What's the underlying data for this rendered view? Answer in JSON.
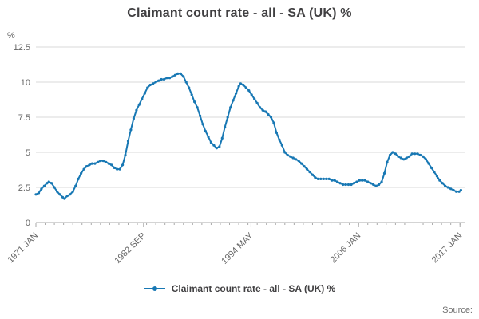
{
  "title": "Claimant count rate - all - SA (UK) %",
  "legend": {
    "label": "Claimant count rate - all - SA (UK) %"
  },
  "source_label": "Source:",
  "colors": {
    "line": "#1878b4",
    "grid": "#d9d9d9",
    "axis": "#a8a8a8",
    "tick_text": "#666666",
    "title_text": "#414042"
  },
  "chart_data": {
    "type": "line",
    "title": "Claimant count rate - all - SA (UK) %",
    "xlabel": "",
    "ylabel": "%",
    "x_range": [
      1971.0,
      2017.5
    ],
    "ylim": [
      0,
      12.5
    ],
    "y_ticks": [
      0,
      2.5,
      5,
      7.5,
      10,
      12.5
    ],
    "x_ticks": [
      {
        "label": "1971 JAN",
        "x": 1971.0
      },
      {
        "label": "1982 SEP",
        "x": 1982.67
      },
      {
        "label": "1994 MAY",
        "x": 1994.33
      },
      {
        "label": "2006 JAN",
        "x": 2006.0
      },
      {
        "label": "2017 JAN",
        "x": 2017.0
      }
    ],
    "grid": true,
    "legend_position": "bottom",
    "series": [
      {
        "name": "Claimant count rate - all - SA (UK) %",
        "points": [
          [
            1971.0,
            2.0
          ],
          [
            1971.3,
            2.1
          ],
          [
            1971.6,
            2.4
          ],
          [
            1971.9,
            2.6
          ],
          [
            1972.2,
            2.8
          ],
          [
            1972.4,
            2.9
          ],
          [
            1972.7,
            2.8
          ],
          [
            1973.0,
            2.5
          ],
          [
            1973.3,
            2.2
          ],
          [
            1973.6,
            2.0
          ],
          [
            1973.9,
            1.8
          ],
          [
            1974.1,
            1.7
          ],
          [
            1974.4,
            1.9
          ],
          [
            1974.7,
            2.0
          ],
          [
            1975.0,
            2.2
          ],
          [
            1975.3,
            2.6
          ],
          [
            1975.6,
            3.1
          ],
          [
            1975.9,
            3.5
          ],
          [
            1976.2,
            3.8
          ],
          [
            1976.5,
            4.0
          ],
          [
            1976.8,
            4.1
          ],
          [
            1977.1,
            4.2
          ],
          [
            1977.4,
            4.2
          ],
          [
            1977.7,
            4.3
          ],
          [
            1978.0,
            4.4
          ],
          [
            1978.3,
            4.4
          ],
          [
            1978.6,
            4.3
          ],
          [
            1978.9,
            4.2
          ],
          [
            1979.2,
            4.1
          ],
          [
            1979.5,
            3.9
          ],
          [
            1979.8,
            3.8
          ],
          [
            1980.1,
            3.8
          ],
          [
            1980.4,
            4.1
          ],
          [
            1980.7,
            4.8
          ],
          [
            1981.0,
            5.8
          ],
          [
            1981.3,
            6.6
          ],
          [
            1981.6,
            7.4
          ],
          [
            1981.9,
            8.0
          ],
          [
            1982.2,
            8.4
          ],
          [
            1982.5,
            8.8
          ],
          [
            1982.8,
            9.2
          ],
          [
            1983.1,
            9.6
          ],
          [
            1983.4,
            9.8
          ],
          [
            1983.7,
            9.9
          ],
          [
            1984.0,
            10.0
          ],
          [
            1984.3,
            10.1
          ],
          [
            1984.6,
            10.2
          ],
          [
            1984.9,
            10.2
          ],
          [
            1985.2,
            10.3
          ],
          [
            1985.5,
            10.3
          ],
          [
            1985.8,
            10.4
          ],
          [
            1986.1,
            10.5
          ],
          [
            1986.4,
            10.6
          ],
          [
            1986.7,
            10.6
          ],
          [
            1987.0,
            10.4
          ],
          [
            1987.3,
            10.0
          ],
          [
            1987.6,
            9.6
          ],
          [
            1987.9,
            9.1
          ],
          [
            1988.2,
            8.6
          ],
          [
            1988.5,
            8.2
          ],
          [
            1988.8,
            7.6
          ],
          [
            1989.1,
            7.0
          ],
          [
            1989.4,
            6.5
          ],
          [
            1989.7,
            6.1
          ],
          [
            1990.0,
            5.7
          ],
          [
            1990.3,
            5.5
          ],
          [
            1990.6,
            5.3
          ],
          [
            1990.9,
            5.4
          ],
          [
            1991.2,
            6.0
          ],
          [
            1991.5,
            6.8
          ],
          [
            1991.8,
            7.5
          ],
          [
            1992.1,
            8.2
          ],
          [
            1992.4,
            8.7
          ],
          [
            1992.7,
            9.2
          ],
          [
            1993.0,
            9.7
          ],
          [
            1993.2,
            9.9
          ],
          [
            1993.5,
            9.8
          ],
          [
            1993.8,
            9.6
          ],
          [
            1994.1,
            9.4
          ],
          [
            1994.4,
            9.1
          ],
          [
            1994.7,
            8.8
          ],
          [
            1995.0,
            8.5
          ],
          [
            1995.3,
            8.2
          ],
          [
            1995.6,
            8.0
          ],
          [
            1995.9,
            7.9
          ],
          [
            1996.2,
            7.7
          ],
          [
            1996.5,
            7.5
          ],
          [
            1996.8,
            7.1
          ],
          [
            1997.1,
            6.4
          ],
          [
            1997.4,
            5.9
          ],
          [
            1997.7,
            5.5
          ],
          [
            1998.0,
            5.0
          ],
          [
            1998.3,
            4.8
          ],
          [
            1998.6,
            4.7
          ],
          [
            1998.9,
            4.6
          ],
          [
            1999.2,
            4.5
          ],
          [
            1999.5,
            4.4
          ],
          [
            1999.8,
            4.2
          ],
          [
            2000.1,
            4.0
          ],
          [
            2000.4,
            3.8
          ],
          [
            2000.7,
            3.6
          ],
          [
            2001.0,
            3.4
          ],
          [
            2001.3,
            3.2
          ],
          [
            2001.6,
            3.1
          ],
          [
            2001.9,
            3.1
          ],
          [
            2002.2,
            3.1
          ],
          [
            2002.5,
            3.1
          ],
          [
            2002.8,
            3.1
          ],
          [
            2003.1,
            3.0
          ],
          [
            2003.4,
            3.0
          ],
          [
            2003.7,
            2.9
          ],
          [
            2004.0,
            2.8
          ],
          [
            2004.3,
            2.7
          ],
          [
            2004.6,
            2.7
          ],
          [
            2004.9,
            2.7
          ],
          [
            2005.2,
            2.7
          ],
          [
            2005.5,
            2.8
          ],
          [
            2005.8,
            2.9
          ],
          [
            2006.1,
            3.0
          ],
          [
            2006.4,
            3.0
          ],
          [
            2006.7,
            3.0
          ],
          [
            2007.0,
            2.9
          ],
          [
            2007.3,
            2.8
          ],
          [
            2007.6,
            2.7
          ],
          [
            2007.9,
            2.6
          ],
          [
            2008.2,
            2.7
          ],
          [
            2008.5,
            2.9
          ],
          [
            2008.8,
            3.5
          ],
          [
            2009.1,
            4.3
          ],
          [
            2009.4,
            4.8
          ],
          [
            2009.7,
            5.0
          ],
          [
            2010.0,
            4.9
          ],
          [
            2010.3,
            4.7
          ],
          [
            2010.6,
            4.6
          ],
          [
            2010.9,
            4.5
          ],
          [
            2011.2,
            4.6
          ],
          [
            2011.5,
            4.7
          ],
          [
            2011.8,
            4.9
          ],
          [
            2012.1,
            4.9
          ],
          [
            2012.4,
            4.9
          ],
          [
            2012.7,
            4.8
          ],
          [
            2013.0,
            4.7
          ],
          [
            2013.3,
            4.5
          ],
          [
            2013.6,
            4.2
          ],
          [
            2013.9,
            3.9
          ],
          [
            2014.2,
            3.6
          ],
          [
            2014.5,
            3.3
          ],
          [
            2014.8,
            3.0
          ],
          [
            2015.1,
            2.8
          ],
          [
            2015.4,
            2.6
          ],
          [
            2015.7,
            2.5
          ],
          [
            2016.0,
            2.4
          ],
          [
            2016.3,
            2.3
          ],
          [
            2016.6,
            2.2
          ],
          [
            2016.9,
            2.2
          ],
          [
            2017.1,
            2.3
          ]
        ]
      }
    ]
  }
}
